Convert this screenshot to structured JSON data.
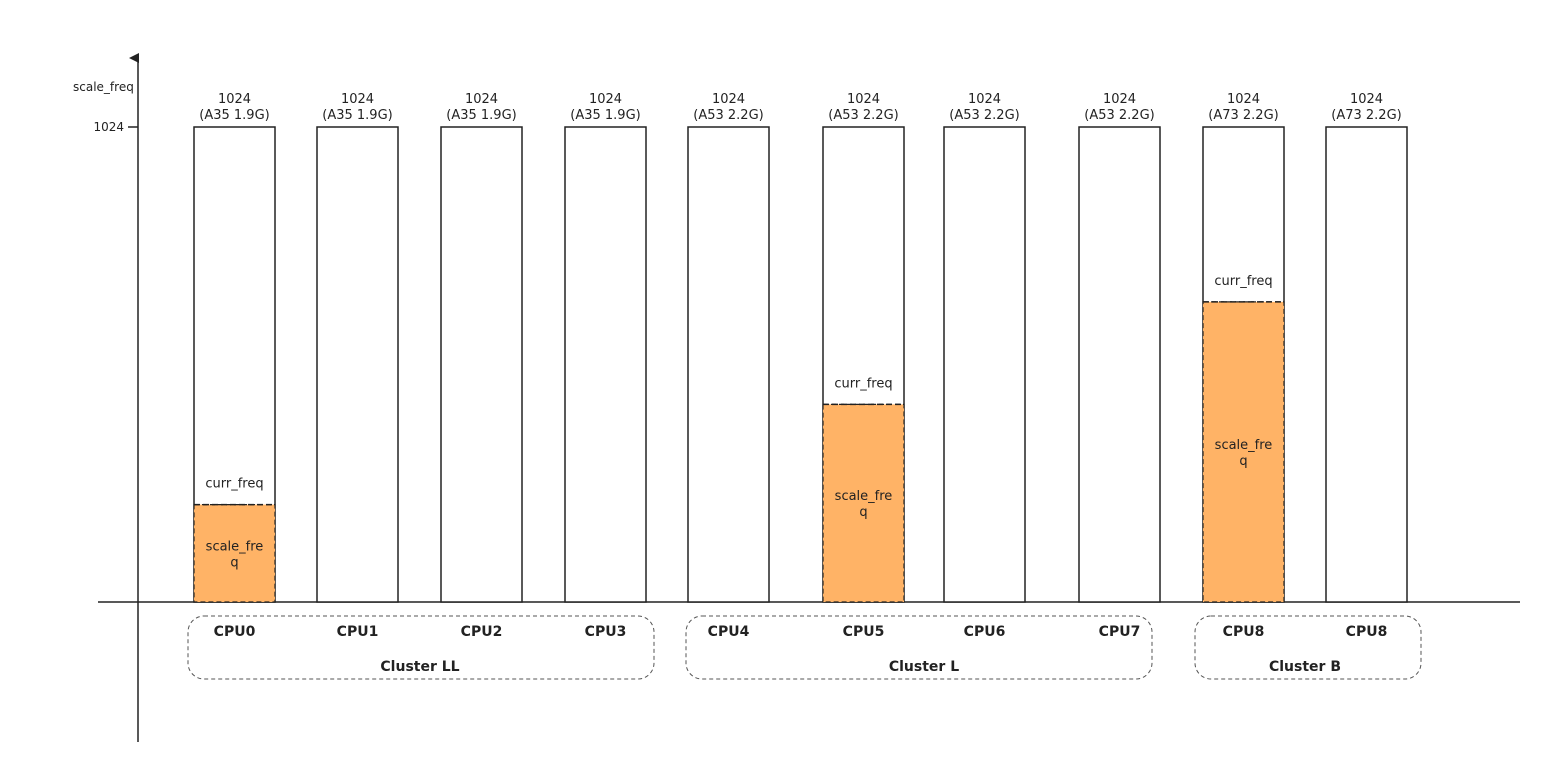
{
  "axis": {
    "y_label": "scale_freq",
    "y_tick": "1024"
  },
  "cpus": [
    {
      "name": "CPU0",
      "capacity": "1024",
      "core": "(A35 1.9G)",
      "scale_freq": 210,
      "curr_label": "curr_freq",
      "fill_label": [
        "scale_fre",
        "q"
      ]
    },
    {
      "name": "CPU1",
      "capacity": "1024",
      "core": "(A35 1.9G)"
    },
    {
      "name": "CPU2",
      "capacity": "1024",
      "core": "(A35 1.9G)"
    },
    {
      "name": "CPU3",
      "capacity": "1024",
      "core": "(A35 1.9G)"
    },
    {
      "name": "CPU4",
      "capacity": "1024",
      "core": "(A53 2.2G)"
    },
    {
      "name": "CPU5",
      "capacity": "1024",
      "core": "(A53 2.2G)",
      "scale_freq": 426,
      "curr_label": "curr_freq",
      "fill_label": [
        "scale_fre",
        "q"
      ]
    },
    {
      "name": "CPU6",
      "capacity": "1024",
      "core": "(A53 2.2G)"
    },
    {
      "name": "CPU7",
      "capacity": "1024",
      "core": "(A53 2.2G)"
    },
    {
      "name": "CPU8",
      "capacity": "1024",
      "core": "(A73 2.2G)",
      "scale_freq": 647,
      "curr_label": "curr_freq",
      "fill_label": [
        "scale_fre",
        "q"
      ]
    },
    {
      "name": "CPU8",
      "capacity": "1024",
      "core": "(A73 2.2G)"
    }
  ],
  "clusters": [
    {
      "name": "Cluster LL"
    },
    {
      "name": "Cluster L"
    },
    {
      "name": "Cluster B"
    }
  ],
  "colors": {
    "fill": "#ffb366",
    "stroke": "#222222"
  }
}
